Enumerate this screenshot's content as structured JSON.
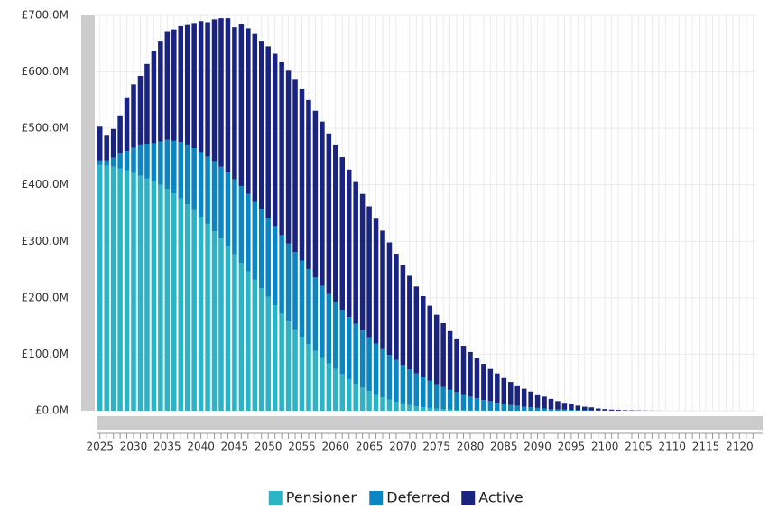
{
  "chart_data": {
    "type": "stacked_bar",
    "categories": [
      "2025",
      null,
      null,
      null,
      null,
      "2030",
      null,
      null,
      null,
      null,
      "2035",
      null,
      null,
      null,
      null,
      "2040",
      null,
      null,
      null,
      null,
      "2045",
      null,
      null,
      null,
      null,
      "2050",
      null,
      null,
      null,
      null,
      "2055",
      null,
      null,
      null,
      null,
      "2060",
      null,
      null,
      null,
      null,
      "2065",
      null,
      null,
      null,
      null,
      "2070",
      null,
      null,
      null,
      null,
      "2075",
      null,
      null,
      null,
      null,
      "2080",
      null,
      null,
      null,
      null,
      "2085",
      null,
      null,
      null,
      null,
      "2090",
      null,
      null,
      null,
      null,
      "2095",
      null,
      null,
      null,
      null,
      "2100",
      null,
      null,
      null,
      null,
      "2105",
      null,
      null,
      null,
      null,
      "2110",
      null,
      null,
      null,
      null,
      "2115",
      null,
      null,
      null,
      null,
      "2120",
      null,
      null
    ],
    "series": [
      {
        "name": "Pensioner",
        "color": "#2bb3c6",
        "values": [
          435,
          434,
          432,
          429,
          426,
          421,
          416,
          411,
          406,
          400,
          393,
          385,
          376,
          366,
          355,
          343,
          331,
          318,
          305,
          291,
          277,
          262,
          247,
          232,
          217,
          202,
          187,
          172,
          158,
          144,
          131,
          118,
          106,
          95,
          84,
          74,
          65,
          56,
          48,
          41,
          35,
          29,
          24,
          20,
          16,
          13,
          10,
          8,
          6,
          5,
          4,
          3,
          2,
          1.5,
          1,
          0.8,
          0.5,
          0.3,
          0.2,
          0.1,
          0,
          0,
          0,
          0,
          0,
          0,
          0,
          0,
          0,
          0,
          0,
          0,
          0,
          0,
          0,
          0,
          0,
          0,
          0,
          0,
          0,
          0,
          0,
          0,
          0,
          0,
          0,
          0,
          0,
          0,
          0,
          0,
          0,
          0,
          0,
          0,
          0,
          0
        ]
      },
      {
        "name": "Deferred",
        "color": "#0a86c3",
        "values": [
          8,
          9,
          16,
          26,
          34,
          45,
          54,
          61,
          68,
          77,
          87,
          93,
          100,
          104,
          110,
          115,
          119,
          124,
          127,
          131,
          133,
          136,
          137,
          138,
          140,
          140,
          140,
          139,
          138,
          137,
          135,
          133,
          130,
          126,
          123,
          119,
          114,
          110,
          106,
          101,
          95,
          90,
          85,
          79,
          74,
          68,
          63,
          58,
          53,
          48,
          43,
          39,
          35,
          31.5,
          28,
          24.2,
          21.5,
          18.7,
          16.8,
          13.9,
          12,
          10,
          9,
          7,
          6,
          5,
          4,
          3,
          2.5,
          2,
          1.5,
          1,
          0.8,
          0.6,
          0.4,
          0.3,
          0.2,
          0.1,
          0.1,
          0,
          0,
          0,
          0,
          0,
          0,
          0,
          0,
          0,
          0,
          0,
          0,
          0,
          0,
          0,
          0,
          0,
          0,
          0
        ]
      },
      {
        "name": "Active",
        "color": "#1a2480",
        "values": [
          60,
          44,
          51,
          68,
          95,
          112,
          123,
          142,
          163,
          178,
          192,
          197,
          205,
          213,
          220,
          232,
          238,
          251,
          263,
          273,
          269,
          286,
          293,
          297,
          298,
          303,
          305,
          306,
          306,
          305,
          303,
          299,
          295,
          291,
          284,
          277,
          270,
          261,
          251,
          242,
          232,
          221,
          210,
          199,
          188,
          177,
          166,
          154,
          144,
          133,
          123,
          113,
          104,
          95,
          86,
          79,
          71,
          64,
          57,
          52,
          46,
          41,
          36,
          32,
          28,
          24,
          21,
          18,
          14.5,
          12,
          10.5,
          8,
          6.2,
          5.4,
          3.6,
          2.7,
          1.8,
          1.4,
          0.9,
          0.7,
          0.5,
          0.3,
          0.2,
          0.1,
          0,
          0,
          0,
          0,
          0,
          0,
          0,
          0,
          0,
          0,
          0,
          0,
          0,
          0
        ]
      }
    ],
    "ylim": [
      0,
      700
    ],
    "yticks": [
      {
        "value": 0,
        "label": "£0.0M"
      },
      {
        "value": 100,
        "label": "£100.0M"
      },
      {
        "value": 200,
        "label": "£200.0M"
      },
      {
        "value": 300,
        "label": "£300.0M"
      },
      {
        "value": 400,
        "label": "£400.0M"
      },
      {
        "value": 500,
        "label": "£500.0M"
      },
      {
        "value": 600,
        "label": "£600.0M"
      },
      {
        "value": 700,
        "label": "£700.0M"
      }
    ],
    "grid": true,
    "legend": "bottom"
  }
}
